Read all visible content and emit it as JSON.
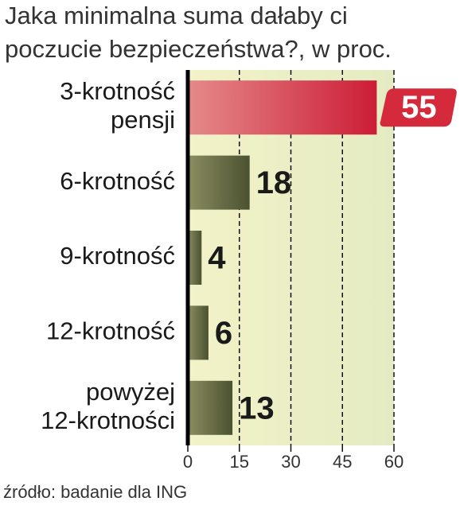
{
  "chart_data": {
    "type": "bar",
    "orientation": "horizontal",
    "title": [
      "Jaka minimalna suma dałaby ci",
      "poczucie bezpieczeństwa?, w proc."
    ],
    "categories": [
      "3-krotność pensji",
      "6-krotność",
      "9-krotność",
      "12-krotność",
      "powyżej 12-krotności"
    ],
    "values": [
      55,
      18,
      4,
      6,
      13
    ],
    "colors": [
      "#d42a3c",
      "#5c6238",
      "#5c6238",
      "#5c6238",
      "#5c6238"
    ],
    "xlim": [
      0,
      60
    ],
    "xticks": [
      0,
      15,
      30,
      45,
      60
    ],
    "grid": true,
    "source": "źródło: badanie dla ING"
  }
}
